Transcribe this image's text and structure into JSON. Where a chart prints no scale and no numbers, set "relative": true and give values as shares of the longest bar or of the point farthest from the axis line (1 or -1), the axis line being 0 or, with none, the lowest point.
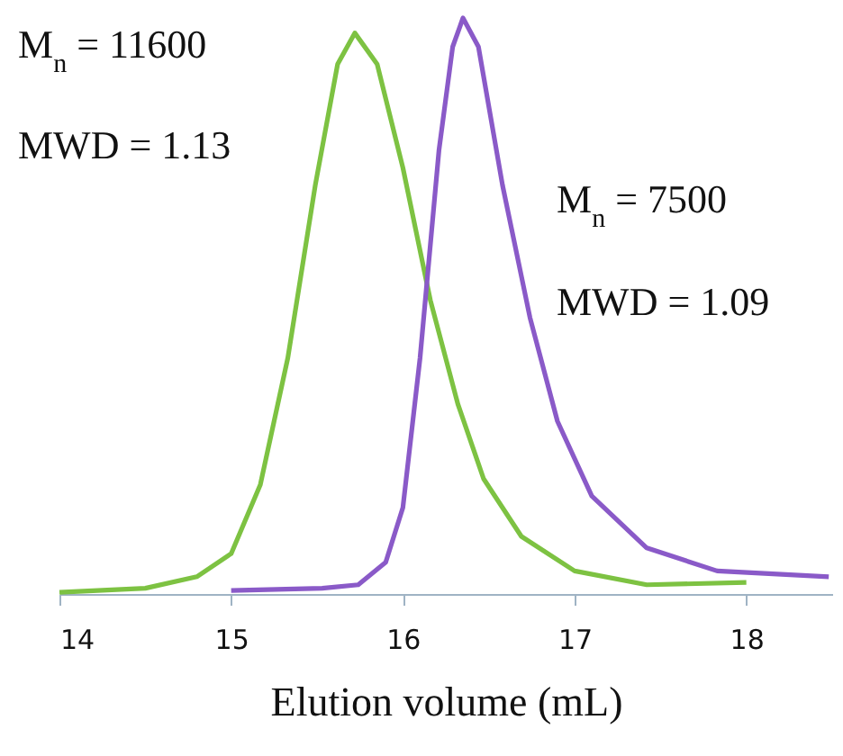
{
  "chart_data": {
    "type": "line",
    "relative": true,
    "xlabel": "Elution volume (mL)",
    "xlim": [
      14,
      18.5
    ],
    "xticks": [
      14,
      15,
      16,
      17,
      18
    ],
    "annotations": [
      "M$_{n}$ = 11600",
      "MWD = 1.13",
      "M$_{n}$ = 7500",
      "MWD = 1.09"
    ],
    "series": [
      {
        "color": "#7dc242",
        "x": [
          14.0,
          14.5,
          14.8,
          15.0,
          15.17,
          15.33,
          15.49,
          15.62,
          15.72,
          15.85,
          16.0,
          16.16,
          16.32,
          16.47,
          16.69,
          17.0,
          17.42,
          18.0
        ],
        "values": [
          0.003,
          0.01,
          0.03,
          0.07,
          0.19,
          0.41,
          0.71,
          0.92,
          0.974,
          0.92,
          0.74,
          0.51,
          0.33,
          0.2,
          0.1,
          0.04,
          0.016,
          0.02
        ]
      },
      {
        "color": "#8a5ac8",
        "x": [
          15.0,
          15.53,
          15.74,
          15.9,
          16.0,
          16.1,
          16.21,
          16.29,
          16.35,
          16.44,
          16.58,
          16.74,
          16.9,
          17.1,
          17.42,
          17.83,
          18.48
        ],
        "values": [
          0.006,
          0.01,
          0.016,
          0.055,
          0.15,
          0.41,
          0.77,
          0.95,
          1,
          0.95,
          0.71,
          0.48,
          0.3,
          0.17,
          0.08,
          0.04,
          0.03
        ]
      }
    ]
  }
}
